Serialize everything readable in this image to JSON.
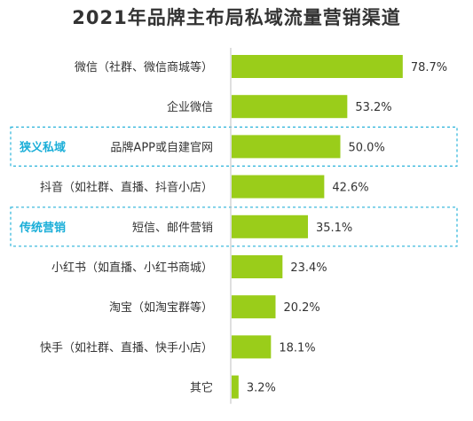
{
  "title": "2021年品牌主布局私域流量营销渠道",
  "colors": {
    "bar": "#9ACD1A",
    "text": "#333333",
    "highlight_label": "#1AAED8",
    "highlight_box": "#2AB3DA",
    "axis": "#BFBFBF"
  },
  "highlights": [
    {
      "label": "狭义私域",
      "category": "品牌APP或自建官网"
    },
    {
      "label": "传统营销",
      "category": "短信、邮件营销"
    }
  ],
  "chart_data": {
    "type": "bar",
    "orientation": "horizontal",
    "title": "2021年品牌主布局私域流量营销渠道",
    "categories": [
      "微信（社群、微信商城等）",
      "企业微信",
      "品牌APP或自建官网",
      "抖音（如社群、直播、抖音小店）",
      "短信、邮件营销",
      "小红书（如直播、小红书商城）",
      "淘宝（如淘宝群等）",
      "快手（如社群、直播、快手小店）",
      "其它"
    ],
    "values": [
      78.7,
      53.2,
      50.0,
      42.6,
      35.1,
      23.4,
      20.2,
      18.1,
      3.2
    ],
    "value_labels": [
      "78.7%",
      "53.2%",
      "50.0%",
      "42.6%",
      "35.1%",
      "23.4%",
      "20.2%",
      "18.1%",
      "3.2%"
    ],
    "xlim": [
      0,
      100
    ],
    "grid": false
  }
}
